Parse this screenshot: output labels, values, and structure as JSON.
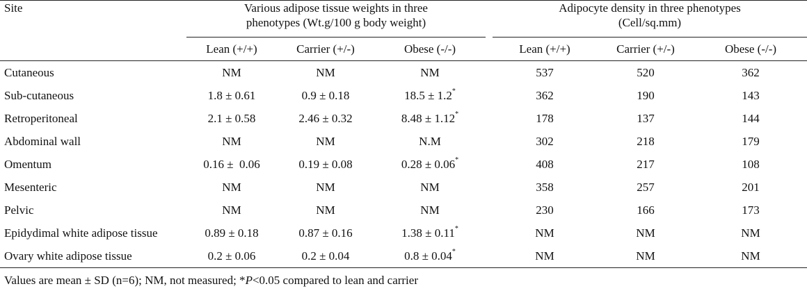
{
  "header": {
    "site_label": "Site",
    "group1_line1": "Various adipose tissue weights in three",
    "group1_line2": "phenotypes (Wt.g/100 g body weight)",
    "group2_line1": "Adipocyte density in three phenotypes",
    "group2_line2": "(Cell/sq.mm)",
    "sub": [
      "Lean (+/+)",
      "Carrier (+/-)",
      "Obese (-/-)",
      "Lean (+/+)",
      "Carrier (+/-)",
      "Obese (-/-)"
    ]
  },
  "rows": [
    {
      "site": "Cutaneous",
      "w_lean": "NM",
      "w_carrier": "NM",
      "w_obese": "NM",
      "w_obese_mark": "",
      "d_lean": "537",
      "d_carrier": "520",
      "d_obese": "362"
    },
    {
      "site": "Sub-cutaneous",
      "w_lean": "1.8 ± 0.61",
      "w_carrier": "0.9 ± 0.18",
      "w_obese": "18.5 ± 1.2",
      "w_obese_mark": "*",
      "d_lean": "362",
      "d_carrier": "190",
      "d_obese": "143"
    },
    {
      "site": "Retroperitoneal",
      "w_lean": "2.1 ± 0.58",
      "w_carrier": "2.46 ± 0.32",
      "w_obese": "8.48 ± 1.12",
      "w_obese_mark": "*",
      "d_lean": "178",
      "d_carrier": "137",
      "d_obese": "144"
    },
    {
      "site": "Abdominal wall",
      "w_lean": "NM",
      "w_carrier": "NM",
      "w_obese": "N.M",
      "w_obese_mark": "",
      "d_lean": "302",
      "d_carrier": "218",
      "d_obese": "179"
    },
    {
      "site": "Omentum",
      "w_lean": "0.16 ±  0.06",
      "w_carrier": "0.19 ± 0.08",
      "w_obese": "0.28 ± 0.06",
      "w_obese_mark": "*",
      "d_lean": "408",
      "d_carrier": "217",
      "d_obese": "108"
    },
    {
      "site": "Mesenteric",
      "w_lean": "NM",
      "w_carrier": "NM",
      "w_obese": "NM",
      "w_obese_mark": "",
      "d_lean": "358",
      "d_carrier": "257",
      "d_obese": "201"
    },
    {
      "site": "Pelvic",
      "w_lean": "NM",
      "w_carrier": "NM",
      "w_obese": "NM",
      "w_obese_mark": "",
      "d_lean": "230",
      "d_carrier": "166",
      "d_obese": "173"
    },
    {
      "site": "Epidydimal white adipose tissue",
      "w_lean": "0.89 ± 0.18",
      "w_carrier": "0.87 ± 0.16",
      "w_obese": "1.38 ± 0.11",
      "w_obese_mark": "*",
      "d_lean": "NM",
      "d_carrier": "NM",
      "d_obese": "NM"
    },
    {
      "site": "Ovary white adipose tissue",
      "w_lean": "0.2 ± 0.06",
      "w_carrier": "0.2 ± 0.04",
      "w_obese": "0.8 ± 0.04",
      "w_obese_mark": "*",
      "d_lean": "NM",
      "d_carrier": "NM",
      "d_obese": "NM"
    }
  ],
  "footnote": {
    "part1": "Values are mean ± SD (n=6); NM, not measured; *",
    "p_italic": "P",
    "part2": "<0.05 compared to lean and carrier"
  }
}
